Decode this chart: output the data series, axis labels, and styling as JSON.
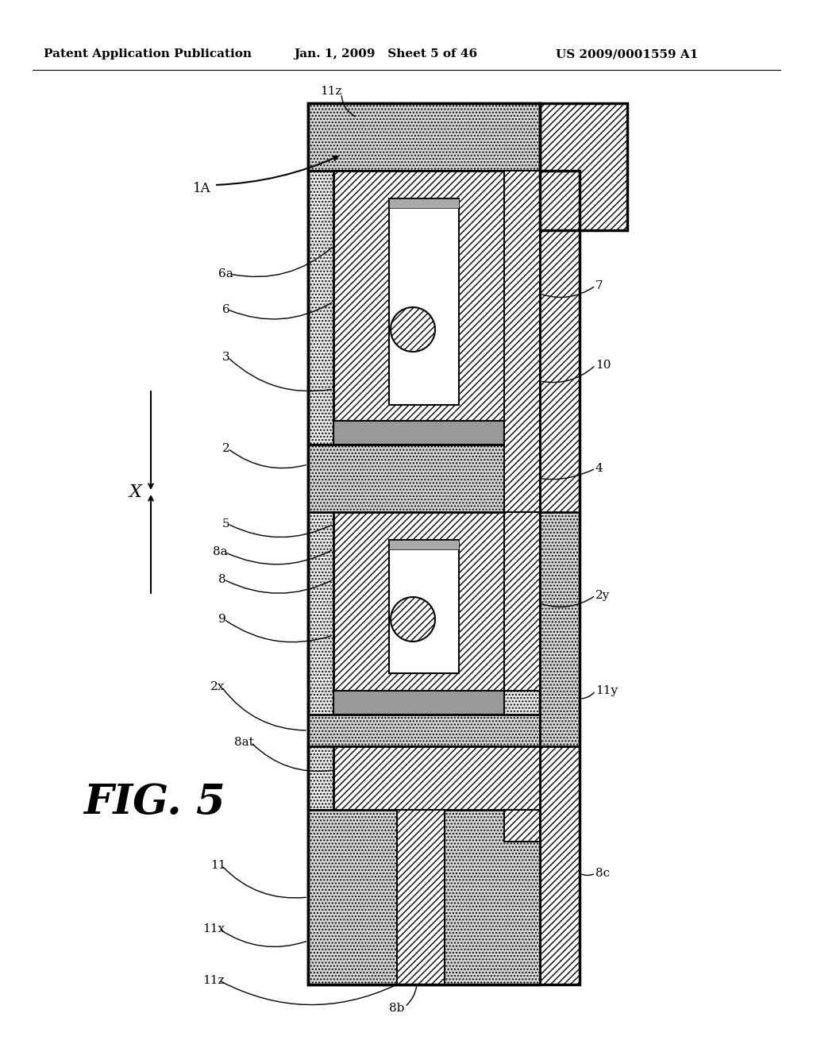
{
  "title_left": "Patent Application Publication",
  "title_mid": "Jan. 1, 2009   Sheet 5 of 46",
  "title_right": "US 2009/0001559 A1",
  "fig_label": "FIG. 5",
  "bg_color": "#ffffff"
}
